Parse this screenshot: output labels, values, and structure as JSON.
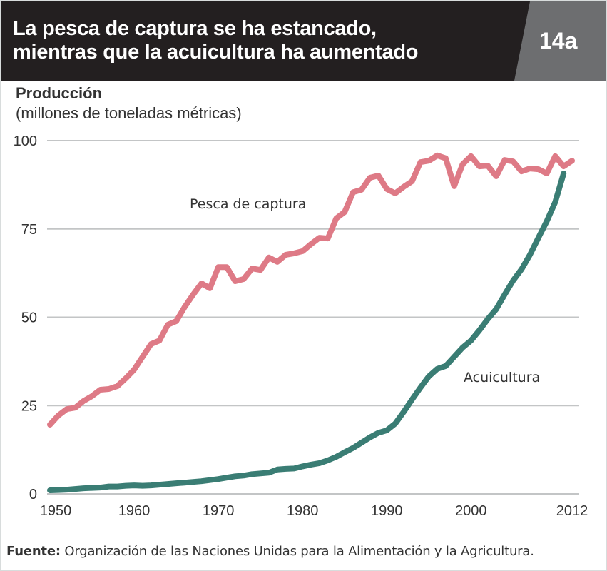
{
  "header": {
    "title_line1": "La pesca de captura se ha estancado,",
    "title_line2": "mientras que la acuicultura ha aumentado",
    "figure_number": "14a"
  },
  "source": {
    "label": "Fuente:",
    "text": "Organización de las Naciones Unidas para la Alimentación y la Agricultura."
  },
  "chart_data": {
    "type": "line",
    "ylabel": "Producción",
    "yunit": "(millones de toneladas métricas)",
    "xlim": [
      1950,
      2012
    ],
    "ylim": [
      0,
      100
    ],
    "grid": true,
    "x_ticks": [
      "1950",
      "1960",
      "1970",
      "1980",
      "1990",
      "2000",
      "2012"
    ],
    "y_ticks": [
      "0",
      "25",
      "50",
      "75",
      "100"
    ],
    "series": [
      {
        "name": "Pesca de captura",
        "color": "#de7a86",
        "x": [
          1950,
          1951,
          1952,
          1953,
          1954,
          1955,
          1956,
          1957,
          1958,
          1959,
          1960,
          1961,
          1962,
          1963,
          1964,
          1965,
          1966,
          1967,
          1968,
          1969,
          1970,
          1971,
          1972,
          1973,
          1974,
          1975,
          1976,
          1977,
          1978,
          1979,
          1980,
          1981,
          1982,
          1983,
          1984,
          1985,
          1986,
          1987,
          1988,
          1989,
          1990,
          1991,
          1992,
          1993,
          1994,
          1995,
          1996,
          1997,
          1998,
          1999,
          2000,
          2001,
          2002,
          2003,
          2004,
          2005,
          2006,
          2007,
          2008,
          2009,
          2010,
          2011,
          2012
        ],
        "values": [
          19.6,
          22.2,
          24.0,
          24.4,
          26.3,
          27.7,
          29.5,
          29.7,
          30.5,
          32.7,
          35.2,
          38.8,
          42.4,
          43.4,
          47.9,
          48.9,
          52.9,
          56.4,
          59.6,
          58.2,
          64.2,
          64.2,
          60.2,
          60.8,
          63.8,
          63.4,
          66.9,
          65.7,
          67.7,
          68.1,
          68.7,
          70.7,
          72.5,
          72.3,
          78.0,
          79.8,
          85.4,
          86.1,
          89.5,
          90.1,
          86.3,
          85.1,
          86.9,
          88.5,
          93.9,
          94.3,
          95.8,
          95.0,
          87.1,
          93.3,
          95.6,
          92.7,
          92.9,
          89.9,
          94.5,
          94.1,
          91.3,
          92.1,
          91.9,
          90.7,
          95.6,
          92.7,
          94.3
        ]
      },
      {
        "name": "Acuicultura",
        "color": "#3a7d74",
        "x": [
          1950,
          1951,
          1952,
          1953,
          1954,
          1955,
          1956,
          1957,
          1958,
          1959,
          1960,
          1961,
          1962,
          1963,
          1964,
          1965,
          1966,
          1967,
          1968,
          1969,
          1970,
          1971,
          1972,
          1973,
          1974,
          1975,
          1976,
          1977,
          1978,
          1979,
          1980,
          1981,
          1982,
          1983,
          1984,
          1985,
          1986,
          1987,
          1988,
          1989,
          1990,
          1991,
          1992,
          1993,
          1994,
          1995,
          1996,
          1997,
          1998,
          1999,
          2000,
          2001,
          2002,
          2003,
          2004,
          2005,
          2006,
          2007,
          2008,
          2009,
          2010,
          2011
        ],
        "values": [
          1.0,
          1.1,
          1.2,
          1.4,
          1.6,
          1.7,
          1.8,
          2.1,
          2.1,
          2.3,
          2.4,
          2.3,
          2.4,
          2.6,
          2.8,
          3.0,
          3.2,
          3.4,
          3.6,
          3.9,
          4.2,
          4.6,
          5.0,
          5.2,
          5.6,
          5.8,
          6.0,
          6.9,
          7.1,
          7.2,
          7.8,
          8.3,
          8.7,
          9.5,
          10.5,
          11.8,
          13.0,
          14.5,
          16.0,
          17.3,
          18.0,
          19.9,
          23.2,
          26.7,
          30.1,
          33.3,
          35.4,
          36.2,
          38.8,
          41.4,
          43.4,
          46.3,
          49.5,
          52.3,
          56.4,
          60.4,
          63.6,
          67.7,
          72.5,
          77.2,
          82.6,
          90.7
        ]
      }
    ]
  }
}
